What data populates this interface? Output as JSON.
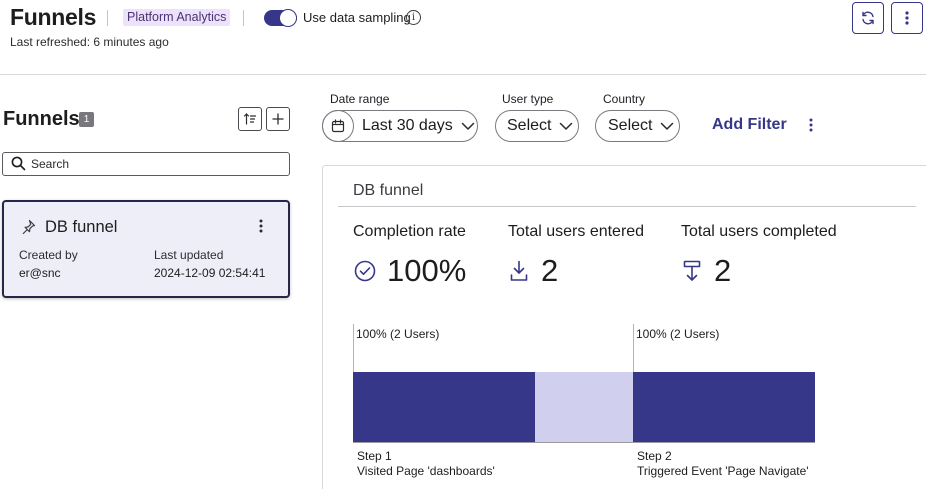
{
  "header": {
    "title": "Funnels",
    "tag": "Platform Analytics",
    "sampling_label": "Use data sampling",
    "sampling_enabled": true,
    "last_refreshed": "Last refreshed: 6 minutes ago",
    "accent_color": "#363788"
  },
  "sidebar": {
    "heading": "Funnels",
    "count": "1",
    "search_placeholder": "Search",
    "funnel_card": {
      "title": "DB funnel",
      "created_by_label": "Created by",
      "created_by": "er@snc",
      "last_updated_label": "Last updated",
      "last_updated": "2024-12-09 02:54:41"
    }
  },
  "filters": {
    "date_range_label": "Date range",
    "date_range_value": "Last 30 days",
    "user_type_label": "User type",
    "user_type_value": "Select",
    "country_label": "Country",
    "country_value": "Select",
    "add_filter_label": "Add Filter"
  },
  "funnel": {
    "title": "DB funnel",
    "completion_rate_label": "Completion rate",
    "completion_rate": "100%",
    "total_entered_label": "Total users entered",
    "total_entered": "2",
    "total_completed_label": "Total users completed",
    "total_completed": "2"
  },
  "chart_data": {
    "type": "bar",
    "categories": [
      "Step 1",
      "Step 2"
    ],
    "steps": [
      {
        "label": "Step 1",
        "description": "Visited Page 'dashboards'",
        "percent": 100,
        "users_label": "100% (2 Users)",
        "value": 2
      },
      {
        "label": "Step 2",
        "description": "Triggered Event 'Page Navigate'",
        "percent": 100,
        "users_label": "100% (2 Users)",
        "value": 2
      }
    ],
    "values": [
      2,
      2
    ],
    "ylim": [
      0,
      2
    ],
    "bar_color": "#363788",
    "connector_color": "#d0d0ee"
  }
}
